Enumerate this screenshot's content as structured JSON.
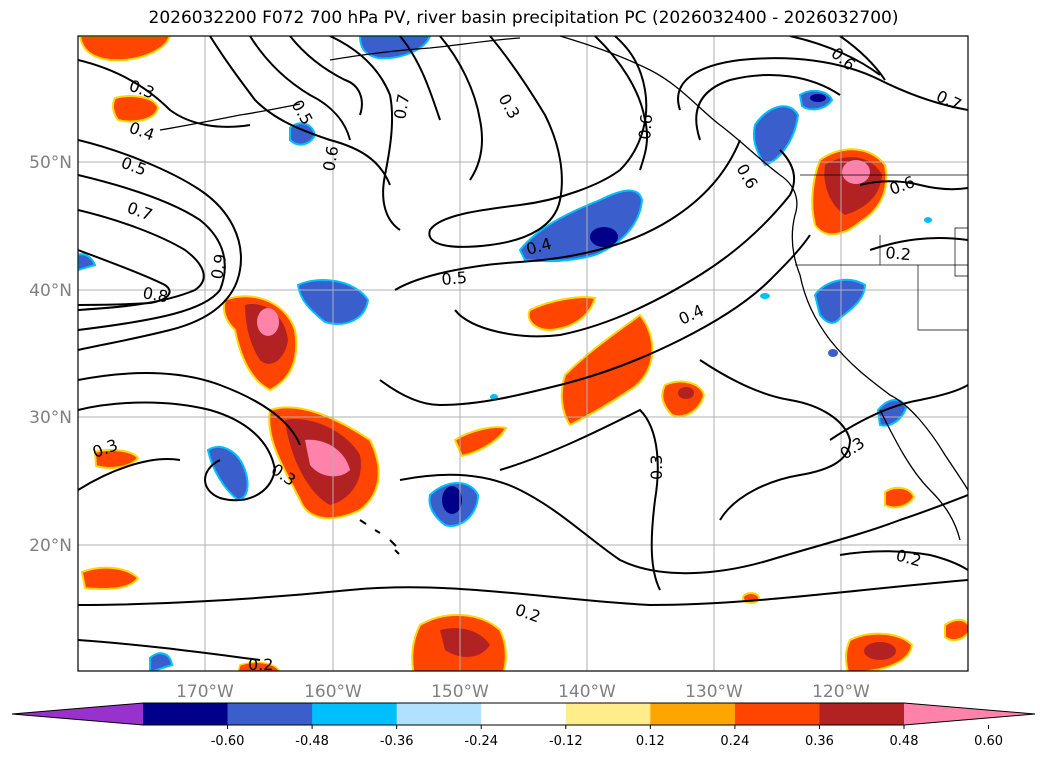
{
  "title": "2026032200 F072 700 hPa PV, river basin precipitation PC (2026032400 - 2026032700)",
  "map": {
    "lat_labels": [
      "50°N",
      "40°N",
      "30°N",
      "20°N"
    ],
    "lon_labels": [
      "170°W",
      "160°W",
      "150°W",
      "140°W",
      "130°W",
      "120°W"
    ],
    "gridlines": true
  },
  "colorbar": {
    "orientation": "horizontal",
    "extend": "both",
    "ticks": [
      "-0.60",
      "-0.48",
      "-0.36",
      "-0.24",
      "-0.12",
      "0.12",
      "0.24",
      "0.36",
      "0.48",
      "0.60"
    ],
    "colors": [
      "#9932cc",
      "#00008b",
      "#3a5fcd",
      "#00bfff",
      "#b0e2ff",
      "#ffffff",
      "#ffec8b",
      "#ffa500",
      "#ff4500",
      "#b22222",
      "#ff82ab"
    ]
  },
  "pv_contour_labels": [
    "0.3",
    "0.4",
    "0.5",
    "0.7",
    "0.8",
    "0.6",
    "0.5",
    "0.7",
    "0.3",
    "0.6",
    "0.6",
    "0.7",
    "0.4",
    "0.5",
    "0.4",
    "0.3",
    "0.3",
    "0.3",
    "0.3",
    "0.2",
    "0.2",
    "0.2",
    "0.2",
    "0.6",
    "0.9",
    "0.6"
  ],
  "precip_colors": {
    "neg_dark": "#00008b",
    "neg_mid": "#3a5fcd",
    "neg_light": "#00bfff",
    "pos_yellow": "#ffd700",
    "pos_orange": "#ff4500",
    "pos_red": "#b22222",
    "pos_pink": "#ff82ab"
  }
}
